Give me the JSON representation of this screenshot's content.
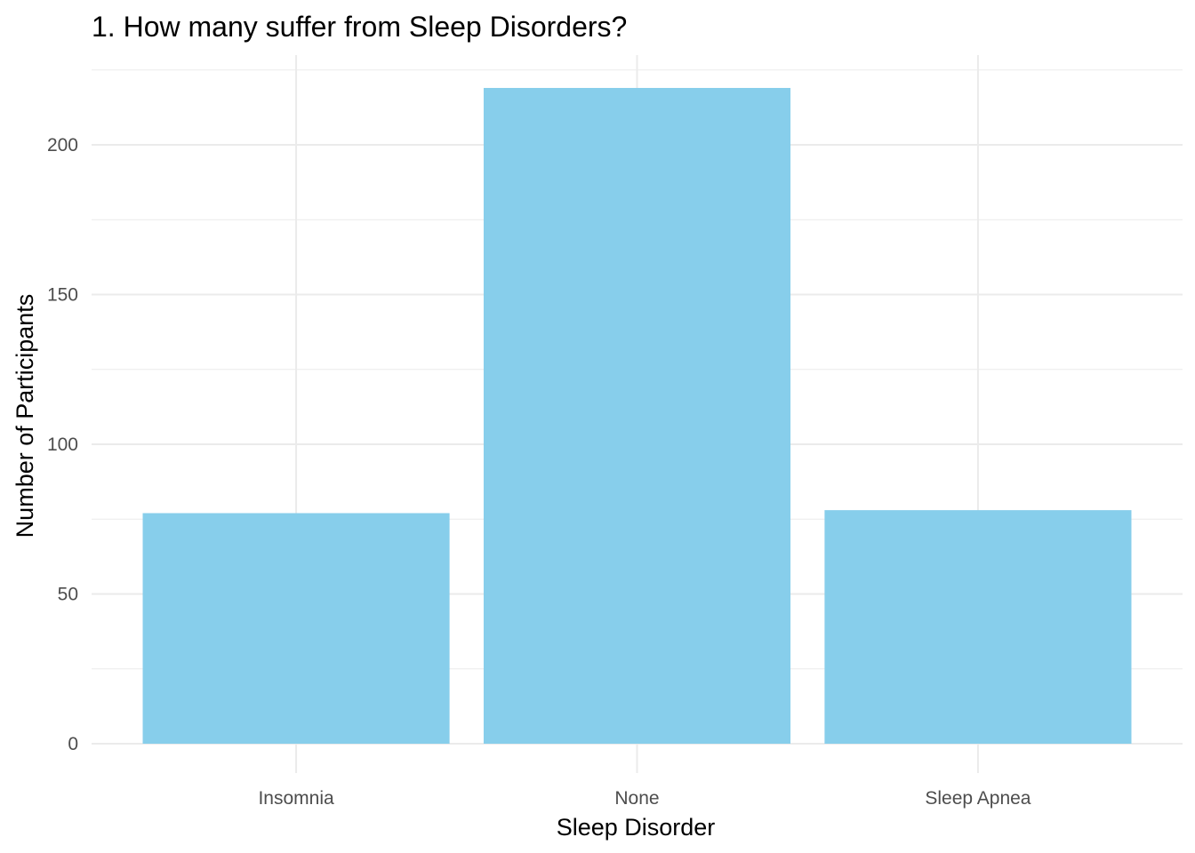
{
  "chart_data": {
    "type": "bar",
    "title": "1. How many suffer from Sleep Disorders?",
    "xlabel": "Sleep Disorder",
    "ylabel": "Number of Participants",
    "categories": [
      "Insomnia",
      "None",
      "Sleep Apnea"
    ],
    "values": [
      77,
      219,
      78
    ],
    "ylim": [
      0,
      225
    ],
    "yticks": [
      0,
      50,
      100,
      150,
      200
    ],
    "ytick_labels": [
      "0",
      "50",
      "100",
      "150",
      "200"
    ],
    "grid": true,
    "legend": "none",
    "bar_color": "#87CEEB",
    "grid_color": "#EBEBEB",
    "text_color": "#000000",
    "tick_color": "#4D4D4D"
  }
}
